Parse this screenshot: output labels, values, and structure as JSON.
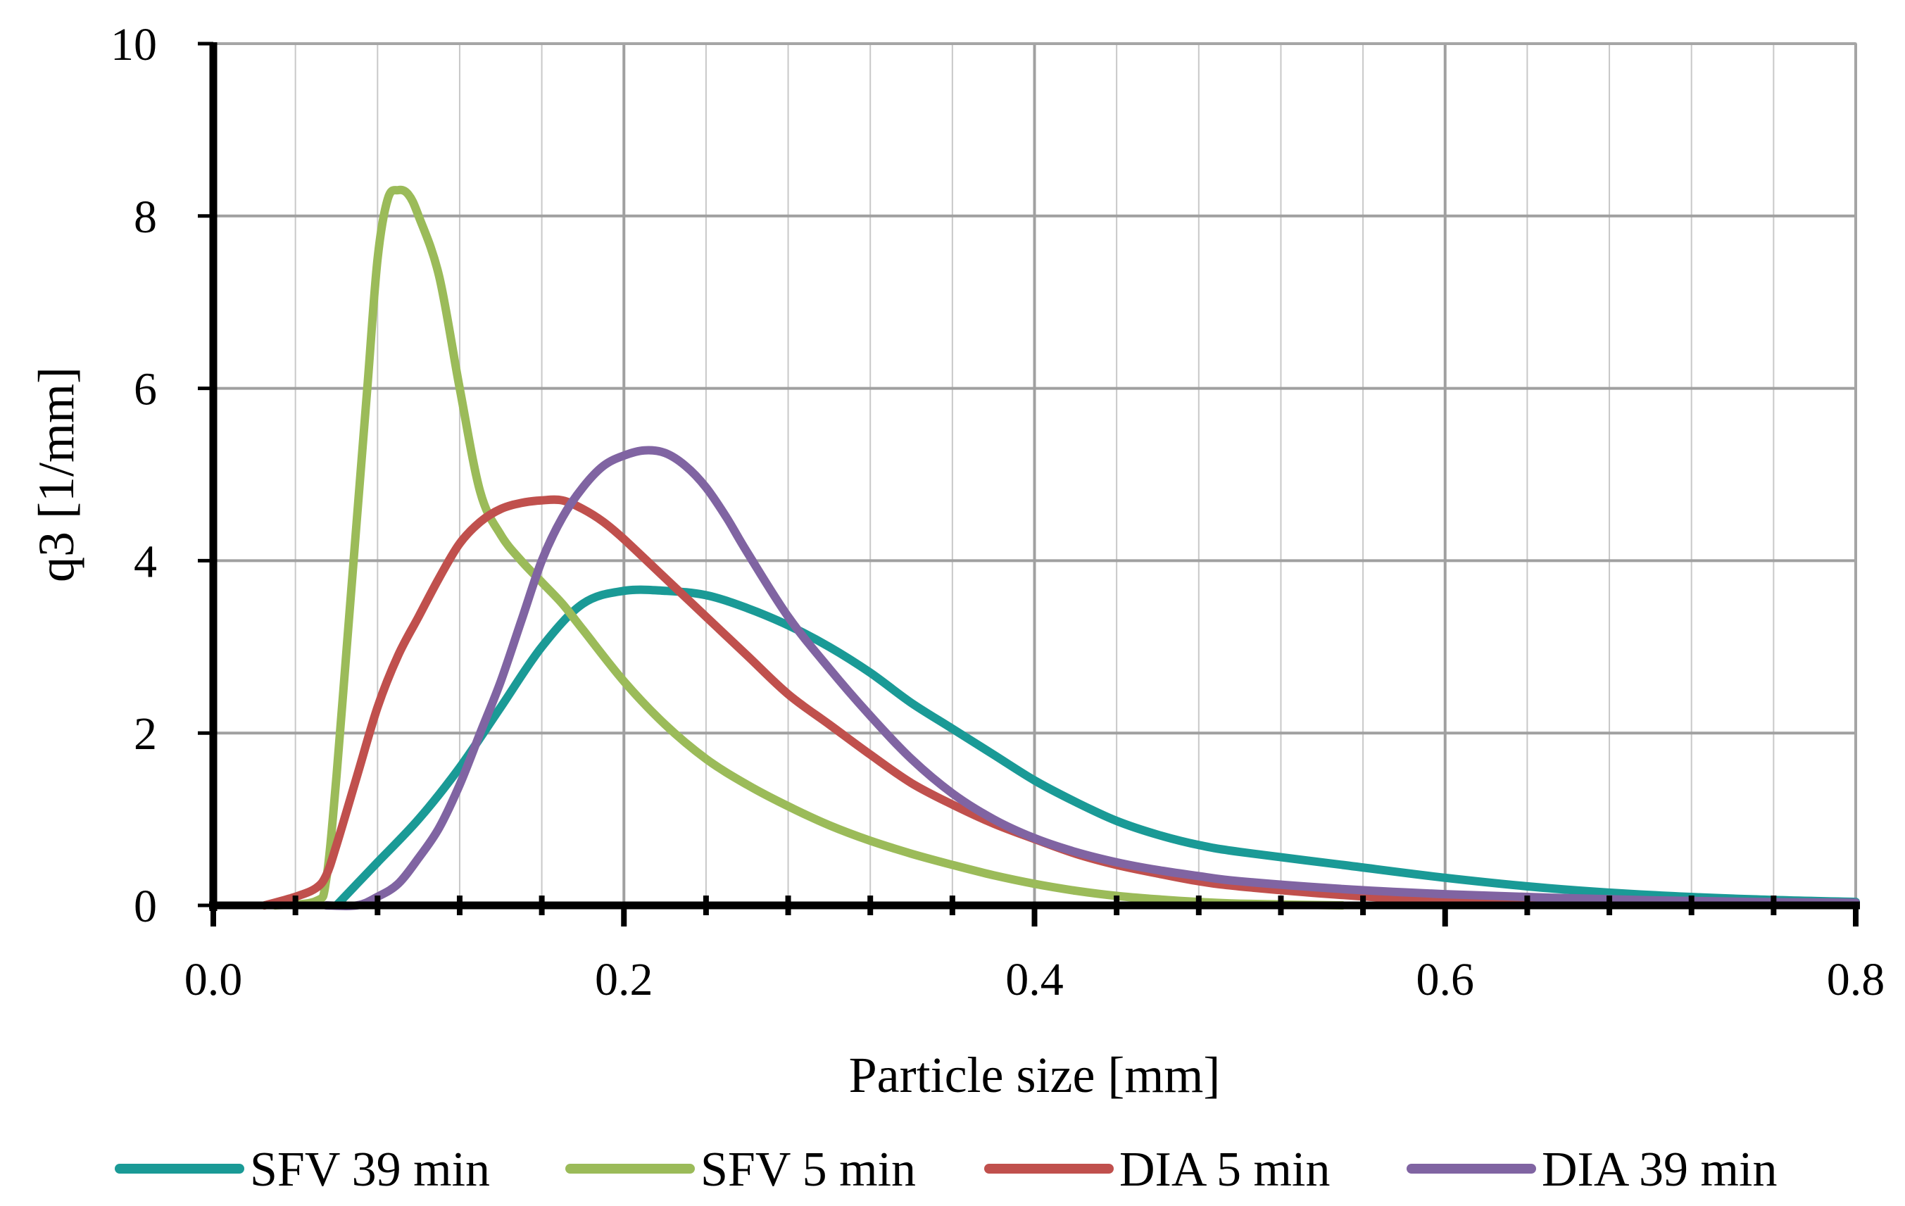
{
  "chart_data": {
    "type": "line",
    "title": "",
    "xlabel": "Particle size [mm]",
    "ylabel": "q3 [1/mm]",
    "xlim": [
      0.0,
      0.8
    ],
    "ylim": [
      0,
      10
    ],
    "x_major_ticks": [
      "0.0",
      "0.2",
      "0.4",
      "0.6",
      "0.8"
    ],
    "y_major_ticks": [
      "0",
      "2",
      "4",
      "6",
      "8",
      "10"
    ],
    "x_minor_step": 0.04,
    "grid": true,
    "legend_position": "bottom",
    "series": [
      {
        "name": "SFV 39 min",
        "color": "#1a9a96",
        "points": [
          [
            0.06,
            0
          ],
          [
            0.07,
            0.25
          ],
          [
            0.08,
            0.5
          ],
          [
            0.1,
            1.0
          ],
          [
            0.12,
            1.6
          ],
          [
            0.14,
            2.3
          ],
          [
            0.16,
            3.0
          ],
          [
            0.18,
            3.5
          ],
          [
            0.2,
            3.65
          ],
          [
            0.22,
            3.65
          ],
          [
            0.24,
            3.6
          ],
          [
            0.26,
            3.45
          ],
          [
            0.28,
            3.25
          ],
          [
            0.3,
            3.0
          ],
          [
            0.32,
            2.7
          ],
          [
            0.34,
            2.35
          ],
          [
            0.36,
            2.05
          ],
          [
            0.38,
            1.75
          ],
          [
            0.4,
            1.45
          ],
          [
            0.42,
            1.2
          ],
          [
            0.44,
            0.98
          ],
          [
            0.46,
            0.82
          ],
          [
            0.48,
            0.7
          ],
          [
            0.5,
            0.62
          ],
          [
            0.55,
            0.47
          ],
          [
            0.6,
            0.32
          ],
          [
            0.65,
            0.2
          ],
          [
            0.7,
            0.12
          ],
          [
            0.75,
            0.07
          ],
          [
            0.8,
            0.04
          ]
        ]
      },
      {
        "name": "SFV 5 min",
        "color": "#9bbb59",
        "points": [
          [
            0.03,
            0
          ],
          [
            0.05,
            0.05
          ],
          [
            0.055,
            0.3
          ],
          [
            0.06,
            1.5
          ],
          [
            0.065,
            3.0
          ],
          [
            0.07,
            4.5
          ],
          [
            0.075,
            6.0
          ],
          [
            0.08,
            7.5
          ],
          [
            0.085,
            8.2
          ],
          [
            0.09,
            8.3
          ],
          [
            0.095,
            8.25
          ],
          [
            0.1,
            8.0
          ],
          [
            0.11,
            7.3
          ],
          [
            0.12,
            6.0
          ],
          [
            0.13,
            4.8
          ],
          [
            0.14,
            4.3
          ],
          [
            0.15,
            4.0
          ],
          [
            0.16,
            3.75
          ],
          [
            0.17,
            3.5
          ],
          [
            0.18,
            3.2
          ],
          [
            0.2,
            2.6
          ],
          [
            0.22,
            2.1
          ],
          [
            0.24,
            1.7
          ],
          [
            0.26,
            1.4
          ],
          [
            0.28,
            1.15
          ],
          [
            0.3,
            0.93
          ],
          [
            0.32,
            0.75
          ],
          [
            0.34,
            0.6
          ],
          [
            0.36,
            0.47
          ],
          [
            0.38,
            0.35
          ],
          [
            0.4,
            0.25
          ],
          [
            0.42,
            0.17
          ],
          [
            0.44,
            0.11
          ],
          [
            0.46,
            0.07
          ],
          [
            0.48,
            0.04
          ],
          [
            0.5,
            0.02
          ],
          [
            0.55,
            0
          ]
        ]
      },
      {
        "name": "DIA 5 min",
        "color": "#c0504d",
        "points": [
          [
            0.025,
            0
          ],
          [
            0.04,
            0.1
          ],
          [
            0.05,
            0.2
          ],
          [
            0.055,
            0.35
          ],
          [
            0.06,
            0.7
          ],
          [
            0.07,
            1.5
          ],
          [
            0.08,
            2.3
          ],
          [
            0.09,
            2.9
          ],
          [
            0.1,
            3.35
          ],
          [
            0.11,
            3.8
          ],
          [
            0.12,
            4.2
          ],
          [
            0.13,
            4.45
          ],
          [
            0.14,
            4.6
          ],
          [
            0.15,
            4.67
          ],
          [
            0.16,
            4.7
          ],
          [
            0.17,
            4.7
          ],
          [
            0.18,
            4.6
          ],
          [
            0.19,
            4.45
          ],
          [
            0.2,
            4.25
          ],
          [
            0.22,
            3.8
          ],
          [
            0.24,
            3.35
          ],
          [
            0.26,
            2.9
          ],
          [
            0.28,
            2.45
          ],
          [
            0.3,
            2.1
          ],
          [
            0.32,
            1.75
          ],
          [
            0.34,
            1.42
          ],
          [
            0.36,
            1.17
          ],
          [
            0.38,
            0.95
          ],
          [
            0.4,
            0.77
          ],
          [
            0.42,
            0.6
          ],
          [
            0.44,
            0.47
          ],
          [
            0.46,
            0.37
          ],
          [
            0.48,
            0.28
          ],
          [
            0.5,
            0.22
          ],
          [
            0.55,
            0.12
          ],
          [
            0.6,
            0.06
          ],
          [
            0.7,
            0.02
          ],
          [
            0.8,
            0.01
          ]
        ]
      },
      {
        "name": "DIA 39 min",
        "color": "#8064a2",
        "points": [
          [
            0.055,
            0
          ],
          [
            0.07,
            0
          ],
          [
            0.08,
            0.1
          ],
          [
            0.09,
            0.25
          ],
          [
            0.1,
            0.55
          ],
          [
            0.11,
            0.9
          ],
          [
            0.12,
            1.4
          ],
          [
            0.13,
            2.0
          ],
          [
            0.14,
            2.6
          ],
          [
            0.15,
            3.3
          ],
          [
            0.16,
            4.0
          ],
          [
            0.17,
            4.5
          ],
          [
            0.18,
            4.85
          ],
          [
            0.19,
            5.1
          ],
          [
            0.2,
            5.22
          ],
          [
            0.21,
            5.28
          ],
          [
            0.22,
            5.25
          ],
          [
            0.23,
            5.1
          ],
          [
            0.24,
            4.85
          ],
          [
            0.25,
            4.5
          ],
          [
            0.26,
            4.1
          ],
          [
            0.28,
            3.35
          ],
          [
            0.3,
            2.75
          ],
          [
            0.32,
            2.2
          ],
          [
            0.34,
            1.7
          ],
          [
            0.36,
            1.3
          ],
          [
            0.38,
            1.0
          ],
          [
            0.4,
            0.78
          ],
          [
            0.42,
            0.62
          ],
          [
            0.44,
            0.5
          ],
          [
            0.46,
            0.41
          ],
          [
            0.48,
            0.34
          ],
          [
            0.5,
            0.28
          ],
          [
            0.55,
            0.19
          ],
          [
            0.6,
            0.13
          ],
          [
            0.65,
            0.09
          ],
          [
            0.7,
            0.06
          ],
          [
            0.75,
            0.04
          ],
          [
            0.8,
            0.03
          ]
        ]
      }
    ]
  }
}
